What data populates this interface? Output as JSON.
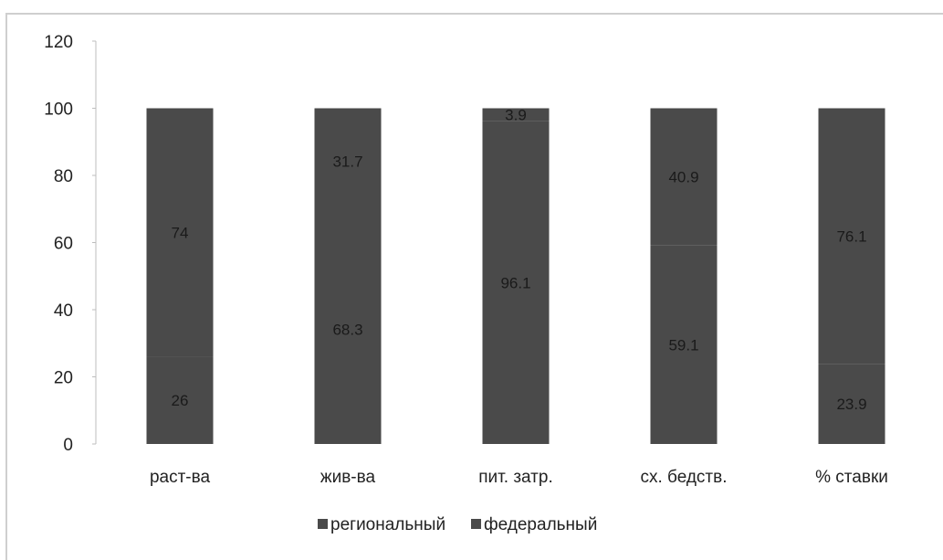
{
  "chart_data": {
    "type": "bar",
    "stacked": true,
    "categories": [
      "раст-ва",
      "жив-ва",
      "пит. затр.",
      "сх. бедств.",
      "% ставки"
    ],
    "series": [
      {
        "name": "региональный",
        "values": [
          26,
          68.3,
          96.1,
          59.1,
          23.9
        ],
        "labels": [
          "26",
          "68.3",
          "96.1",
          "59.1",
          "23.9"
        ],
        "color": "#4a4a4a"
      },
      {
        "name": "федеральный",
        "values": [
          74,
          31.7,
          3.9,
          40.9,
          76.1
        ],
        "labels": [
          "74",
          "31.7",
          "3.9",
          "40.9",
          "76.1"
        ],
        "color": "#4a4a4a"
      }
    ],
    "yticks": [
      "0",
      "20",
      "40",
      "60",
      "80",
      "100",
      "120"
    ],
    "ylim": [
      0,
      120
    ],
    "grid": false,
    "legend": "bottom"
  }
}
